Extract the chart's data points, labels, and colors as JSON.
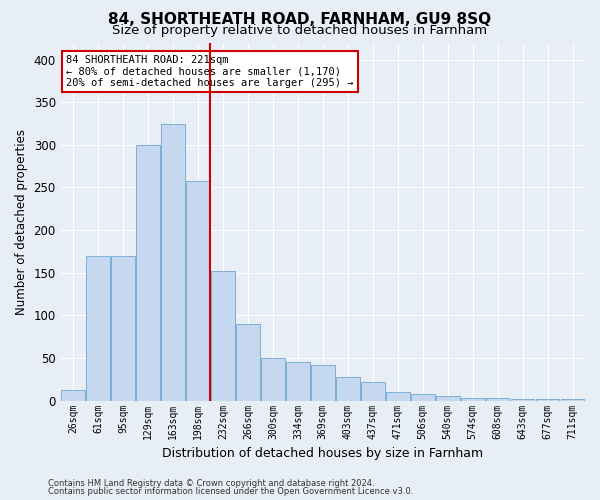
{
  "title": "84, SHORTHEATH ROAD, FARNHAM, GU9 8SQ",
  "subtitle": "Size of property relative to detached houses in Farnham",
  "xlabel": "Distribution of detached houses by size in Farnham",
  "ylabel": "Number of detached properties",
  "footnote1": "Contains HM Land Registry data © Crown copyright and database right 2024.",
  "footnote2": "Contains public sector information licensed under the Open Government Licence v3.0.",
  "bins": [
    "26sqm",
    "61sqm",
    "95sqm",
    "129sqm",
    "163sqm",
    "198sqm",
    "232sqm",
    "266sqm",
    "300sqm",
    "334sqm",
    "369sqm",
    "403sqm",
    "437sqm",
    "471sqm",
    "506sqm",
    "540sqm",
    "574sqm",
    "608sqm",
    "643sqm",
    "677sqm",
    "711sqm"
  ],
  "values": [
    12,
    170,
    170,
    300,
    325,
    258,
    152,
    90,
    50,
    45,
    42,
    28,
    22,
    10,
    8,
    5,
    3,
    3,
    2,
    2,
    2
  ],
  "bar_color": "#c5d8f0",
  "bar_edge_color": "#7bafd4",
  "vline_color": "#cc0000",
  "annotation_text": "84 SHORTHEATH ROAD: 221sqm\n← 80% of detached houses are smaller (1,170)\n20% of semi-detached houses are larger (295) →",
  "annotation_box_color": "#ffffff",
  "annotation_box_edge": "#cc0000",
  "ylim": [
    0,
    420
  ],
  "yticks": [
    0,
    50,
    100,
    150,
    200,
    250,
    300,
    350,
    400
  ],
  "bg_color": "#e8eef6",
  "grid_color": "#ffffff",
  "title_fontsize": 11,
  "subtitle_fontsize": 9.5
}
